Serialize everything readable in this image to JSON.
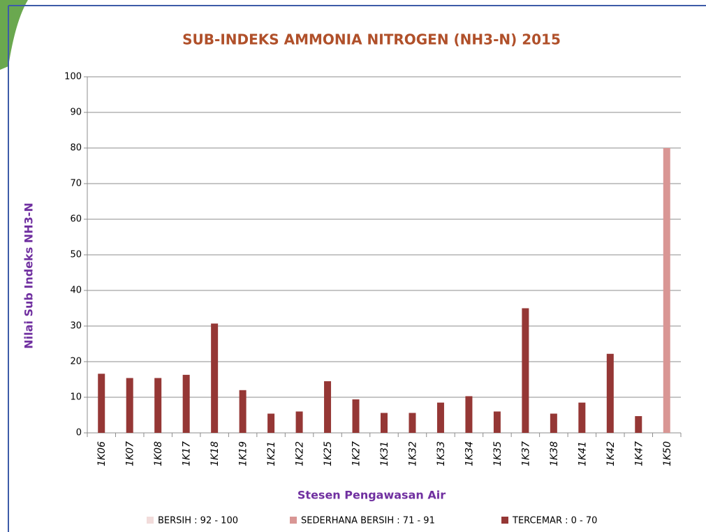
{
  "chart_data": {
    "type": "bar",
    "title": "SUB-INDEKS AMMONIA NITROGEN (NH3-N) 2015",
    "x_label": "Stesen Pengawasan Air",
    "y_label": "Nilai Sub Indeks NH3-N",
    "categories": [
      "1K06",
      "1K07",
      "1K08",
      "1K17",
      "1K18",
      "1K19",
      "1K21",
      "1K22",
      "1K25",
      "1K27",
      "1K31",
      "1K32",
      "1K33",
      "1K34",
      "1K35",
      "1K37",
      "1K38",
      "1K41",
      "1K42",
      "1K47",
      "1K50"
    ],
    "series": [
      {
        "name": "BERSIH : 92 - 100",
        "color": "#f2dcdb",
        "values": [
          null,
          null,
          null,
          null,
          null,
          null,
          null,
          null,
          null,
          null,
          null,
          null,
          null,
          null,
          null,
          null,
          null,
          null,
          null,
          null,
          null
        ]
      },
      {
        "name": "SEDERHANA BERSIH  : 71 - 91",
        "color": "#d99694",
        "values": [
          null,
          null,
          null,
          null,
          null,
          null,
          null,
          null,
          null,
          null,
          null,
          null,
          null,
          null,
          null,
          null,
          null,
          null,
          null,
          null,
          80
        ]
      },
      {
        "name": "TERCEMAR : 0 - 70",
        "color": "#953735",
        "values": [
          16.6,
          15.4,
          15.4,
          16.3,
          30.7,
          12,
          5.4,
          6,
          14.5,
          9.4,
          5.6,
          5.6,
          8.5,
          10.3,
          6,
          35,
          5.4,
          8.5,
          22.2,
          4.7,
          null
        ]
      }
    ],
    "ylim": [
      0,
      100
    ],
    "yticks": [
      0,
      10,
      20,
      30,
      40,
      50,
      60,
      70,
      80,
      90,
      100
    ],
    "grid": true,
    "legend": "bottom"
  }
}
